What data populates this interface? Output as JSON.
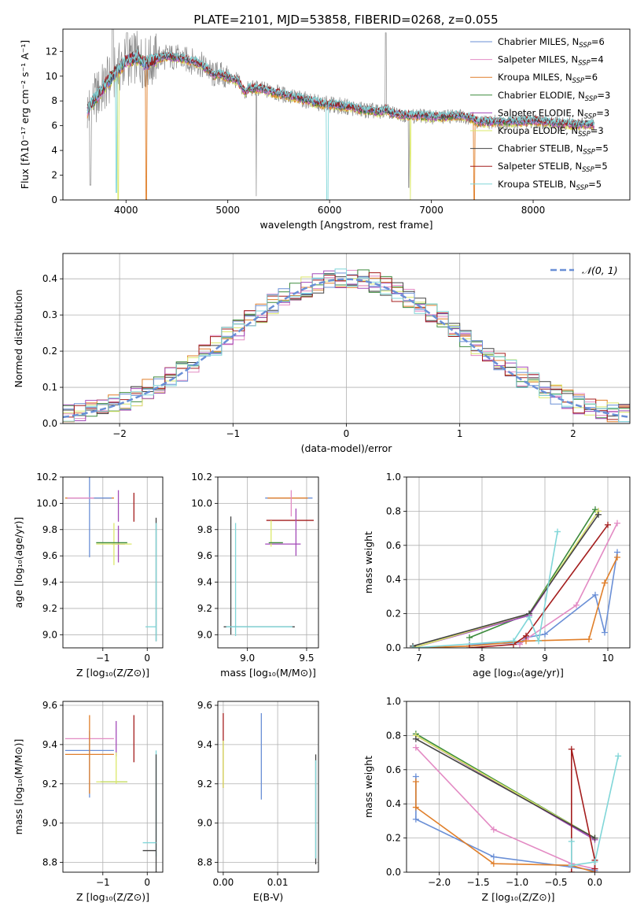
{
  "figure_title": "PLATE=2101, MJD=53858, FIBERID=0268, z=0.055",
  "colors": {
    "blue": "#6a8fd6",
    "pink": "#e38bc4",
    "orange": "#e07f2a",
    "green": "#3c8a3c",
    "purple": "#a34ab8",
    "yellow": "#dbe86a",
    "dark": "#444444",
    "darkred": "#a41e1e",
    "cyan": "#80d6d8",
    "gray": "#8a8a8a"
  },
  "chart_data": [
    {
      "id": "spectrum",
      "type": "line",
      "xlabel": "wavelength [Angstrom, rest frame]",
      "ylabel": "Flux [fλ10⁻¹⁷ erg cm⁻² s⁻¹ A⁻¹]",
      "xlim": [
        3380,
        8950
      ],
      "ylim": [
        0,
        13.8
      ],
      "xticks": [
        4000,
        5000,
        6000,
        7000,
        8000
      ],
      "yticks": [
        0,
        2,
        4,
        6,
        8,
        10,
        12
      ],
      "grid": false,
      "legend_position": "right",
      "legend": [
        {
          "label": "Chabrier MILES, N",
          "sub": "SSP",
          "suffix": "=6",
          "color": "blue"
        },
        {
          "label": "Salpeter MILES, N",
          "sub": "SSP",
          "suffix": "=4",
          "color": "pink"
        },
        {
          "label": "Kroupa MILES, N",
          "sub": "SSP",
          "suffix": "=6",
          "color": "orange"
        },
        {
          "label": "Chabrier ELODIE, N",
          "sub": "SSP",
          "suffix": "=3",
          "color": "green"
        },
        {
          "label": "Salpeter ELODIE, N",
          "sub": "SSP",
          "suffix": "=3",
          "color": "purple"
        },
        {
          "label": "Kroupa ELODIE, N",
          "sub": "SSP",
          "suffix": "=3",
          "color": "yellow"
        },
        {
          "label": "Chabrier STELIB, N",
          "sub": "SSP",
          "suffix": "=5",
          "color": "dark"
        },
        {
          "label": "Salpeter STELIB, N",
          "sub": "SSP",
          "suffix": "=5",
          "color": "darkred"
        },
        {
          "label": "Kroupa STELIB, N",
          "sub": "SSP",
          "suffix": "=5",
          "color": "cyan"
        }
      ],
      "continuum": [
        [
          3620,
          7.2
        ],
        [
          3700,
          8.2
        ],
        [
          3800,
          9.3
        ],
        [
          3900,
          10.3
        ],
        [
          4000,
          11.2
        ],
        [
          4100,
          11.5
        ],
        [
          4200,
          11.0
        ],
        [
          4300,
          11.4
        ],
        [
          4400,
          11.6
        ],
        [
          4500,
          11.5
        ],
        [
          4600,
          11.3
        ],
        [
          4700,
          11.1
        ],
        [
          4800,
          10.6
        ],
        [
          4860,
          10.0
        ],
        [
          4900,
          10.2
        ],
        [
          5000,
          9.9
        ],
        [
          5100,
          9.6
        ],
        [
          5175,
          8.6
        ],
        [
          5200,
          9.0
        ],
        [
          5300,
          9.0
        ],
        [
          5400,
          8.8
        ],
        [
          5500,
          8.6
        ],
        [
          5600,
          8.4
        ],
        [
          5700,
          8.2
        ],
        [
          5800,
          8.0
        ],
        [
          5900,
          7.8
        ],
        [
          6000,
          7.7
        ],
        [
          6100,
          7.6
        ],
        [
          6200,
          7.5
        ],
        [
          6300,
          7.3
        ],
        [
          6400,
          7.2
        ],
        [
          6500,
          7.1
        ],
        [
          6563,
          7.3
        ],
        [
          6600,
          7.0
        ],
        [
          6700,
          6.9
        ],
        [
          6800,
          6.8
        ],
        [
          6900,
          6.8
        ],
        [
          7000,
          6.7
        ],
        [
          7100,
          6.7
        ],
        [
          7200,
          6.8
        ],
        [
          7300,
          6.8
        ],
        [
          7400,
          6.6
        ],
        [
          7450,
          6.3
        ],
        [
          7600,
          6.3
        ],
        [
          7800,
          6.3
        ],
        [
          8000,
          6.4
        ],
        [
          8200,
          6.2
        ],
        [
          8400,
          6.1
        ],
        [
          8600,
          6.1
        ]
      ]
    },
    {
      "id": "residuals",
      "type": "bar",
      "xlabel": "(data-model)/error",
      "ylabel": "Normed distribution",
      "xlim": [
        -2.5,
        2.5
      ],
      "ylim": [
        0,
        0.47
      ],
      "xticks": [
        -2,
        -1,
        0,
        1,
        2
      ],
      "yticks": [
        0.0,
        0.1,
        0.2,
        0.3,
        0.4
      ],
      "grid": true,
      "legend_position": "top-right",
      "gaussian_label": "𝒩(0, 1)",
      "bin_width": 0.1
    },
    {
      "id": "age-vs-Z",
      "type": "scatter",
      "xlabel": "Z [log₁₀(Z/Z⊙)]",
      "ylabel": "age  [log₁₀(age/yr)]",
      "xlim": [
        -1.9,
        0.35
      ],
      "ylim": [
        8.9,
        10.2
      ],
      "xticks": [
        -1,
        0
      ],
      "yticks": [
        9.0,
        9.2,
        9.4,
        9.6,
        9.8,
        10.0,
        10.2
      ],
      "grid": true,
      "crosses": [
        {
          "x": -1.3,
          "dx": 0.55,
          "y": 10.04,
          "dy": 0.0,
          "color": "orange"
        },
        {
          "x": -1.3,
          "dx": 0.5,
          "y": 10.04,
          "dy": 0.45,
          "color": "blue"
        },
        {
          "x": -1.5,
          "dx": 0.3,
          "y": 10.04,
          "dy": 0.0,
          "color": "pink"
        },
        {
          "x": -0.3,
          "dx": 0.0,
          "y": 9.97,
          "dy": 0.11,
          "color": "darkred"
        },
        {
          "x": -0.65,
          "dx": 0.0,
          "y": 9.98,
          "dy": 0.12,
          "color": "purple"
        },
        {
          "x": -0.65,
          "dx": 0.15,
          "y": 9.69,
          "dy": 0.14,
          "color": "purple"
        },
        {
          "x": -0.75,
          "dx": 0.4,
          "y": 9.69,
          "dy": 0.16,
          "color": "yellow"
        },
        {
          "x": -0.8,
          "dx": 0.35,
          "y": 9.7,
          "dy": 0.0,
          "color": "green"
        },
        {
          "x": 0.2,
          "dx": 0.0,
          "y": 9.42,
          "dy": 0.47,
          "color": "dark"
        },
        {
          "x": 0.2,
          "dx": 0.0,
          "y": 9.4,
          "dy": 0.45,
          "color": "cyan"
        },
        {
          "x": 0.08,
          "dx": 0.12,
          "y": 9.06,
          "dy": 0.0,
          "color": "cyan"
        }
      ]
    },
    {
      "id": "age-vs-mass",
      "type": "scatter",
      "xlabel": "mass [log₁₀(M/M⊙)]",
      "ylabel": "",
      "xlim": [
        8.75,
        9.6
      ],
      "ylim": [
        8.9,
        10.2
      ],
      "xticks": [
        9.0,
        9.5
      ],
      "yticks": [
        9.0,
        9.2,
        9.4,
        9.6,
        9.8,
        10.0,
        10.2
      ],
      "grid": true,
      "crosses": [
        {
          "x": 9.35,
          "dx": 0.2,
          "y": 10.04,
          "dy": 0.0,
          "color": "blue"
        },
        {
          "x": 9.34,
          "dx": 0.17,
          "y": 10.04,
          "dy": 0.0,
          "color": "orange"
        },
        {
          "x": 9.37,
          "dx": 0.0,
          "y": 10.0,
          "dy": 0.1,
          "color": "pink"
        },
        {
          "x": 9.36,
          "dx": 0.2,
          "y": 9.87,
          "dy": 0.0,
          "color": "darkred"
        },
        {
          "x": 9.41,
          "dx": 0.0,
          "y": 9.78,
          "dy": 0.18,
          "color": "purple"
        },
        {
          "x": 9.3,
          "dx": 0.15,
          "y": 9.69,
          "dy": 0.0,
          "color": "purple"
        },
        {
          "x": 9.2,
          "dx": 0.0,
          "y": 9.77,
          "dy": 0.1,
          "color": "yellow"
        },
        {
          "x": 9.24,
          "dx": 0.06,
          "y": 9.7,
          "dy": 0.0,
          "color": "green"
        },
        {
          "x": 8.86,
          "dx": 0.0,
          "y": 9.45,
          "dy": 0.45,
          "color": "dark"
        },
        {
          "x": 8.9,
          "dx": 0.0,
          "y": 9.42,
          "dy": 0.43,
          "color": "cyan"
        },
        {
          "x": 9.1,
          "dx": 0.3,
          "y": 9.06,
          "dy": 0.0,
          "color": "dark"
        },
        {
          "x": 9.1,
          "dx": 0.28,
          "y": 9.06,
          "dy": 0.0,
          "color": "cyan"
        }
      ]
    },
    {
      "id": "mass-weight-vs-age",
      "type": "line",
      "xlabel": "age  [log₁₀(age/yr)]",
      "ylabel": "mass weight",
      "xlim": [
        6.8,
        10.35
      ],
      "ylim": [
        0,
        1.0
      ],
      "xticks": [
        7,
        8,
        9,
        10
      ],
      "yticks": [
        0.0,
        0.2,
        0.4,
        0.6,
        0.8,
        1.0
      ],
      "grid": true,
      "series": [
        {
          "color": "blue",
          "x": [
            7.8,
            8.6,
            8.7,
            9.0,
            9.8,
            9.95,
            10.15
          ],
          "y": [
            0.02,
            0.03,
            0.06,
            0.08,
            0.31,
            0.09,
            0.56
          ]
        },
        {
          "color": "pink",
          "x": [
            8.6,
            8.7,
            9.5,
            10.15
          ],
          "y": [
            0.02,
            0.05,
            0.25,
            0.73
          ]
        },
        {
          "color": "orange",
          "x": [
            6.95,
            7.8,
            8.7,
            9.7,
            9.95,
            10.15
          ],
          "y": [
            0.0,
            0.01,
            0.04,
            0.05,
            0.38,
            0.53
          ]
        },
        {
          "color": "green",
          "x": [
            7.8,
            8.75,
            9.8
          ],
          "y": [
            0.06,
            0.2,
            0.81
          ]
        },
        {
          "color": "purple",
          "x": [
            6.9,
            8.75,
            9.85
          ],
          "y": [
            0.0,
            0.19,
            0.8
          ]
        },
        {
          "color": "yellow",
          "x": [
            6.9,
            8.75,
            9.85
          ],
          "y": [
            0.0,
            0.2,
            0.8
          ]
        },
        {
          "color": "dark",
          "x": [
            6.9,
            8.75,
            9.85
          ],
          "y": [
            0.01,
            0.2,
            0.78
          ]
        },
        {
          "color": "darkred",
          "x": [
            7.8,
            8.5,
            8.7,
            10.0
          ],
          "y": [
            0.0,
            0.02,
            0.07,
            0.72
          ]
        },
        {
          "color": "cyan",
          "x": [
            6.9,
            8.5,
            8.75,
            8.9,
            9.2
          ],
          "y": [
            0.0,
            0.04,
            0.18,
            0.04,
            0.68
          ]
        }
      ]
    },
    {
      "id": "mass-vs-Z",
      "type": "scatter",
      "xlabel": "Z [log₁₀(Z/Z⊙)]",
      "ylabel": "mass [log₁₀(M/M⊙)]",
      "xlim": [
        -1.9,
        0.35
      ],
      "ylim": [
        8.75,
        9.62
      ],
      "xticks": [
        -1,
        0
      ],
      "yticks": [
        8.8,
        9.0,
        9.2,
        9.4,
        9.6
      ],
      "grid": true,
      "crosses": [
        {
          "x": -1.3,
          "dx": 0.55,
          "y": 9.37,
          "dy": 0.0,
          "color": "blue"
        },
        {
          "x": -1.3,
          "dx": 0.0,
          "y": 9.3,
          "dy": 0.17,
          "color": "blue"
        },
        {
          "x": -1.3,
          "dx": 0.55,
          "y": 9.43,
          "dy": 0.0,
          "color": "pink"
        },
        {
          "x": -1.3,
          "dx": 0.55,
          "y": 9.35,
          "dy": 0.0,
          "color": "orange"
        },
        {
          "x": -1.3,
          "dx": 0.0,
          "y": 9.35,
          "dy": 0.2,
          "color": "orange"
        },
        {
          "x": -0.3,
          "dx": 0.0,
          "y": 9.43,
          "dy": 0.12,
          "color": "darkred"
        },
        {
          "x": -0.7,
          "dx": 0.0,
          "y": 9.43,
          "dy": 0.09,
          "color": "purple"
        },
        {
          "x": -0.75,
          "dx": 0.3,
          "y": 9.21,
          "dy": 0.0,
          "color": "green"
        },
        {
          "x": -0.7,
          "dx": 0.0,
          "y": 9.28,
          "dy": 0.08,
          "color": "yellow"
        },
        {
          "x": -0.8,
          "dx": 0.35,
          "y": 9.21,
          "dy": 0.0,
          "color": "yellow"
        },
        {
          "x": 0.2,
          "dx": 0.0,
          "y": 9.1,
          "dy": 0.27,
          "color": "cyan"
        },
        {
          "x": 0.2,
          "dx": 0.0,
          "y": 9.05,
          "dy": 0.3,
          "color": "dark"
        },
        {
          "x": 0.05,
          "dx": 0.15,
          "y": 8.9,
          "dy": 0.0,
          "color": "cyan"
        },
        {
          "x": 0.05,
          "dx": 0.15,
          "y": 8.86,
          "dy": 0.0,
          "color": "dark"
        }
      ]
    },
    {
      "id": "mass-vs-EBV",
      "type": "scatter",
      "xlabel": "E(B-V)",
      "ylabel": "",
      "xlim": [
        -0.001,
        0.0175
      ],
      "ylim": [
        8.75,
        9.62
      ],
      "xticks": [
        0.0,
        0.01
      ],
      "yticks": [
        8.8,
        9.0,
        9.2,
        9.4,
        9.6
      ],
      "grid": true,
      "crosses": [
        {
          "x": 0.0,
          "dx": 0.0,
          "y": 9.37,
          "dy": 0.19,
          "color": "darkred"
        },
        {
          "x": 0.0,
          "dx": 0.0,
          "y": 9.3,
          "dy": 0.12,
          "color": "yellow"
        },
        {
          "x": 0.007,
          "dx": 0.0,
          "y": 9.34,
          "dy": 0.22,
          "color": "blue"
        },
        {
          "x": 0.017,
          "dx": 0.0,
          "y": 9.07,
          "dy": 0.28,
          "color": "dark"
        },
        {
          "x": 0.017,
          "dx": 0.0,
          "y": 9.07,
          "dy": 0.25,
          "color": "cyan"
        }
      ]
    },
    {
      "id": "mass-weight-vs-Z",
      "type": "line",
      "xlabel": "Z [log₁₀(Z/Z⊙)]",
      "ylabel": "mass weight",
      "xlim": [
        -2.42,
        0.45
      ],
      "ylim": [
        0,
        1.0
      ],
      "xticks": [
        -2.0,
        -1.5,
        -1.0,
        -0.5,
        0.0
      ],
      "yticks": [
        0.0,
        0.2,
        0.4,
        0.6,
        0.8,
        1.0
      ],
      "grid": true,
      "series": [
        {
          "color": "blue",
          "x": [
            -2.3,
            -2.3,
            -1.3,
            -0.3,
            0.0
          ],
          "y": [
            0.56,
            0.31,
            0.09,
            0.03,
            0.01
          ]
        },
        {
          "color": "pink",
          "x": [
            -2.3,
            -1.3,
            -0.3,
            0.0
          ],
          "y": [
            0.73,
            0.25,
            0.05,
            0.02
          ]
        },
        {
          "color": "orange",
          "x": [
            -2.3,
            -2.3,
            -1.3,
            -0.3,
            0.0
          ],
          "y": [
            0.53,
            0.38,
            0.05,
            0.04,
            0.0
          ]
        },
        {
          "color": "green",
          "x": [
            -2.3,
            0.0
          ],
          "y": [
            0.81,
            0.2
          ]
        },
        {
          "color": "purple",
          "x": [
            -2.3,
            0.0
          ],
          "y": [
            0.8,
            0.19
          ]
        },
        {
          "color": "yellow",
          "x": [
            -2.3,
            0.0
          ],
          "y": [
            0.8,
            0.2
          ]
        },
        {
          "color": "dark",
          "x": [
            -2.3,
            0.0
          ],
          "y": [
            0.78,
            0.2
          ]
        },
        {
          "color": "darkred",
          "x": [
            -0.3,
            -0.3,
            0.0,
            0.0
          ],
          "y": [
            0.0,
            0.72,
            0.07,
            0.02
          ]
        },
        {
          "color": "cyan",
          "x": [
            -0.3,
            -0.3,
            0.0,
            0.3
          ],
          "y": [
            0.18,
            0.04,
            0.06,
            0.68
          ]
        }
      ]
    }
  ]
}
